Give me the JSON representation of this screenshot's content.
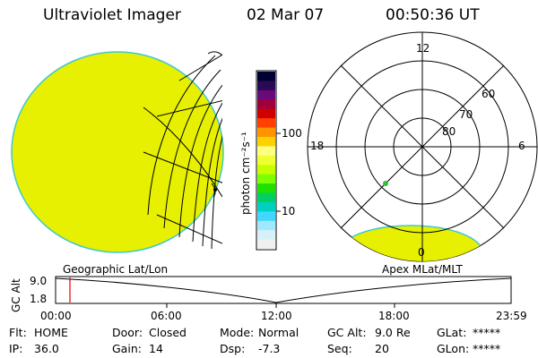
{
  "header": {
    "instrument": "Ultraviolet Imager",
    "date": "02 Mar 07",
    "time": "00:50:36 UT"
  },
  "colorbar": {
    "label": "photon cm⁻²s⁻¹",
    "tick_labels": [
      "100",
      "10"
    ],
    "colors": [
      "#000033",
      "#2a0a55",
      "#6a0a7a",
      "#a0003a",
      "#d00000",
      "#ff4000",
      "#ff9400",
      "#ffd000",
      "#ffff80",
      "#f0ff30",
      "#c8ff00",
      "#7cff00",
      "#20e000",
      "#00d060",
      "#00d0c0",
      "#40d8ff",
      "#a0e8ff",
      "#d8f0f8",
      "#f0f0f0"
    ],
    "image_fill": "#e6f000"
  },
  "left_panel": {
    "label": "Geographic Lat/Lon"
  },
  "right_panel": {
    "label": "Apex  MLat/MLT",
    "mlt_labels": {
      "top": "12",
      "left": "18",
      "right": "6",
      "bottom": "0"
    },
    "lat_labels": [
      "60",
      "70",
      "80"
    ]
  },
  "altitude_plot": {
    "ylabel": "GC Alt",
    "yticks": [
      "9.0",
      "1.8"
    ],
    "xticks": [
      "00:00",
      "06:00",
      "12:00",
      "18:00",
      "23:59"
    ]
  },
  "status": {
    "row1": [
      {
        "label": "Flt:",
        "value": "HOME"
      },
      {
        "label": "Door:",
        "value": "Closed"
      },
      {
        "label": "Mode:",
        "value": "Normal"
      },
      {
        "label": "GC Alt:",
        "value": "9.0 Re"
      },
      {
        "label": "GLat:",
        "value": "*****"
      }
    ],
    "row2": [
      {
        "label": "IP:",
        "value": "36.0"
      },
      {
        "label": "Gain:",
        "value": "14"
      },
      {
        "label": "Dsp:",
        "value": "-7.3"
      },
      {
        "label": "Seq:",
        "value": "20"
      },
      {
        "label": "GLon:",
        "value": "*****"
      }
    ]
  }
}
